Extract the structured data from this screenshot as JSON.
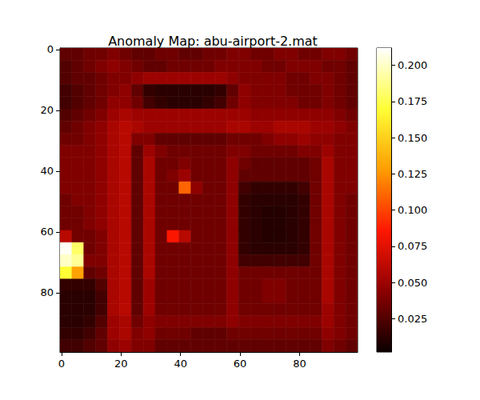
{
  "chart_data": {
    "type": "heatmap",
    "title": "Anomaly Map: abu-airport-2.mat",
    "color": "hot",
    "x": [
      1.5,
      5.5,
      9.5,
      13.5,
      17.5,
      21.5,
      25.5,
      29.5,
      33.5,
      37.5,
      41.5,
      45.5,
      49.5,
      53.5,
      57.5,
      61.5,
      65.5,
      69.5,
      73.5,
      77.5,
      81.5,
      85.5,
      89.5,
      93.5,
      97.5
    ],
    "y": [
      1.5,
      5.5,
      9.5,
      13.5,
      17.5,
      21.5,
      25.5,
      29.5,
      33.5,
      37.5,
      41.5,
      45.5,
      49.5,
      53.5,
      57.5,
      61.5,
      65.5,
      69.5,
      73.5,
      77.5,
      81.5,
      85.5,
      89.5,
      93.5,
      97.5
    ],
    "xlim": [
      -0.5,
      99.5
    ],
    "ylim": [
      99.5,
      -0.5
    ],
    "xticks": [
      0,
      20,
      40,
      60,
      80
    ],
    "yticks": [
      0,
      20,
      40,
      60,
      80
    ],
    "values": [
      [
        0.03,
        0.03,
        0.035,
        0.035,
        0.04,
        0.035,
        0.03,
        0.03,
        0.035,
        0.035,
        0.03,
        0.03,
        0.035,
        0.035,
        0.04,
        0.04,
        0.035,
        0.035,
        0.04,
        0.04,
        0.035,
        0.035,
        0.04,
        0.04,
        0.035
      ],
      [
        0.025,
        0.03,
        0.035,
        0.04,
        0.045,
        0.04,
        0.035,
        0.03,
        0.03,
        0.035,
        0.035,
        0.035,
        0.035,
        0.04,
        0.04,
        0.04,
        0.04,
        0.035,
        0.035,
        0.04,
        0.04,
        0.04,
        0.035,
        0.035,
        0.03
      ],
      [
        0.025,
        0.03,
        0.03,
        0.035,
        0.04,
        0.04,
        0.045,
        0.05,
        0.05,
        0.05,
        0.05,
        0.05,
        0.05,
        0.05,
        0.045,
        0.04,
        0.04,
        0.04,
        0.04,
        0.035,
        0.035,
        0.04,
        0.04,
        0.035,
        0.03
      ],
      [
        0.02,
        0.025,
        0.03,
        0.035,
        0.04,
        0.045,
        0.03,
        0.015,
        0.012,
        0.012,
        0.012,
        0.012,
        0.012,
        0.015,
        0.03,
        0.045,
        0.04,
        0.04,
        0.04,
        0.035,
        0.035,
        0.035,
        0.04,
        0.035,
        0.03
      ],
      [
        0.02,
        0.025,
        0.03,
        0.035,
        0.045,
        0.045,
        0.035,
        0.02,
        0.015,
        0.012,
        0.012,
        0.012,
        0.015,
        0.02,
        0.035,
        0.045,
        0.04,
        0.04,
        0.04,
        0.04,
        0.035,
        0.035,
        0.04,
        0.035,
        0.03
      ],
      [
        0.025,
        0.03,
        0.035,
        0.04,
        0.05,
        0.055,
        0.05,
        0.05,
        0.05,
        0.05,
        0.05,
        0.05,
        0.05,
        0.05,
        0.05,
        0.05,
        0.045,
        0.045,
        0.045,
        0.045,
        0.045,
        0.045,
        0.045,
        0.04,
        0.035
      ],
      [
        0.03,
        0.035,
        0.04,
        0.045,
        0.055,
        0.06,
        0.055,
        0.05,
        0.05,
        0.05,
        0.05,
        0.05,
        0.05,
        0.05,
        0.055,
        0.055,
        0.05,
        0.05,
        0.055,
        0.055,
        0.055,
        0.05,
        0.05,
        0.045,
        0.04
      ],
      [
        0.035,
        0.035,
        0.04,
        0.045,
        0.055,
        0.06,
        0.04,
        0.04,
        0.03,
        0.03,
        0.03,
        0.03,
        0.03,
        0.03,
        0.035,
        0.035,
        0.035,
        0.04,
        0.045,
        0.045,
        0.05,
        0.045,
        0.045,
        0.04,
        0.04
      ],
      [
        0.04,
        0.04,
        0.04,
        0.045,
        0.055,
        0.06,
        0.03,
        0.05,
        0.04,
        0.035,
        0.035,
        0.035,
        0.035,
        0.035,
        0.04,
        0.04,
        0.035,
        0.035,
        0.035,
        0.035,
        0.04,
        0.04,
        0.05,
        0.04,
        0.04
      ],
      [
        0.04,
        0.04,
        0.04,
        0.045,
        0.055,
        0.06,
        0.03,
        0.055,
        0.035,
        0.035,
        0.04,
        0.035,
        0.035,
        0.035,
        0.045,
        0.035,
        0.03,
        0.03,
        0.03,
        0.03,
        0.03,
        0.035,
        0.055,
        0.04,
        0.04
      ],
      [
        0.04,
        0.04,
        0.04,
        0.045,
        0.055,
        0.06,
        0.03,
        0.055,
        0.035,
        0.04,
        0.05,
        0.035,
        0.035,
        0.035,
        0.045,
        0.03,
        0.03,
        0.03,
        0.03,
        0.03,
        0.03,
        0.035,
        0.055,
        0.04,
        0.04
      ],
      [
        0.04,
        0.04,
        0.04,
        0.045,
        0.055,
        0.06,
        0.03,
        0.055,
        0.035,
        0.035,
        0.11,
        0.045,
        0.035,
        0.035,
        0.045,
        0.02,
        0.015,
        0.015,
        0.015,
        0.015,
        0.02,
        0.035,
        0.055,
        0.04,
        0.04
      ],
      [
        0.035,
        0.04,
        0.04,
        0.045,
        0.055,
        0.06,
        0.03,
        0.055,
        0.035,
        0.035,
        0.035,
        0.035,
        0.035,
        0.035,
        0.045,
        0.015,
        0.012,
        0.012,
        0.012,
        0.012,
        0.015,
        0.035,
        0.055,
        0.04,
        0.035
      ],
      [
        0.035,
        0.035,
        0.04,
        0.045,
        0.055,
        0.06,
        0.03,
        0.055,
        0.035,
        0.035,
        0.035,
        0.035,
        0.035,
        0.035,
        0.045,
        0.015,
        0.012,
        0.01,
        0.01,
        0.012,
        0.015,
        0.035,
        0.055,
        0.04,
        0.035
      ],
      [
        0.035,
        0.035,
        0.04,
        0.045,
        0.055,
        0.06,
        0.03,
        0.055,
        0.035,
        0.035,
        0.035,
        0.035,
        0.035,
        0.035,
        0.045,
        0.015,
        0.012,
        0.01,
        0.01,
        0.012,
        0.015,
        0.035,
        0.055,
        0.04,
        0.035
      ],
      [
        0.06,
        0.035,
        0.035,
        0.04,
        0.055,
        0.06,
        0.03,
        0.055,
        0.035,
        0.085,
        0.06,
        0.035,
        0.035,
        0.035,
        0.045,
        0.015,
        0.012,
        0.01,
        0.01,
        0.012,
        0.015,
        0.035,
        0.055,
        0.04,
        0.035
      ],
      [
        0.21,
        0.18,
        0.035,
        0.04,
        0.055,
        0.06,
        0.03,
        0.055,
        0.035,
        0.035,
        0.035,
        0.035,
        0.035,
        0.035,
        0.045,
        0.015,
        0.012,
        0.012,
        0.012,
        0.012,
        0.015,
        0.035,
        0.055,
        0.04,
        0.035
      ],
      [
        0.2,
        0.19,
        0.04,
        0.04,
        0.055,
        0.06,
        0.03,
        0.055,
        0.035,
        0.035,
        0.035,
        0.035,
        0.035,
        0.035,
        0.045,
        0.02,
        0.02,
        0.02,
        0.02,
        0.02,
        0.02,
        0.035,
        0.055,
        0.04,
        0.035
      ],
      [
        0.17,
        0.13,
        0.03,
        0.035,
        0.055,
        0.06,
        0.03,
        0.055,
        0.035,
        0.035,
        0.035,
        0.035,
        0.035,
        0.035,
        0.045,
        0.035,
        0.035,
        0.035,
        0.035,
        0.035,
        0.035,
        0.035,
        0.055,
        0.04,
        0.035
      ],
      [
        0.015,
        0.015,
        0.015,
        0.025,
        0.055,
        0.06,
        0.03,
        0.05,
        0.035,
        0.035,
        0.035,
        0.035,
        0.035,
        0.035,
        0.045,
        0.035,
        0.035,
        0.04,
        0.04,
        0.035,
        0.035,
        0.035,
        0.055,
        0.04,
        0.035
      ],
      [
        0.012,
        0.012,
        0.012,
        0.02,
        0.055,
        0.06,
        0.03,
        0.05,
        0.035,
        0.035,
        0.035,
        0.035,
        0.035,
        0.035,
        0.045,
        0.035,
        0.035,
        0.04,
        0.04,
        0.035,
        0.035,
        0.035,
        0.055,
        0.04,
        0.035
      ],
      [
        0.012,
        0.012,
        0.012,
        0.02,
        0.055,
        0.06,
        0.03,
        0.05,
        0.035,
        0.035,
        0.035,
        0.035,
        0.035,
        0.035,
        0.045,
        0.035,
        0.035,
        0.035,
        0.035,
        0.035,
        0.035,
        0.035,
        0.05,
        0.04,
        0.035
      ],
      [
        0.012,
        0.012,
        0.015,
        0.025,
        0.05,
        0.055,
        0.035,
        0.045,
        0.04,
        0.04,
        0.04,
        0.04,
        0.04,
        0.04,
        0.045,
        0.04,
        0.04,
        0.04,
        0.04,
        0.04,
        0.04,
        0.04,
        0.05,
        0.04,
        0.035
      ],
      [
        0.015,
        0.015,
        0.02,
        0.03,
        0.05,
        0.055,
        0.04,
        0.045,
        0.035,
        0.035,
        0.035,
        0.03,
        0.03,
        0.03,
        0.035,
        0.035,
        0.035,
        0.035,
        0.035,
        0.035,
        0.035,
        0.035,
        0.045,
        0.04,
        0.035
      ],
      [
        0.02,
        0.02,
        0.025,
        0.03,
        0.045,
        0.05,
        0.04,
        0.04,
        0.03,
        0.03,
        0.03,
        0.03,
        0.03,
        0.03,
        0.03,
        0.03,
        0.03,
        0.03,
        0.03,
        0.03,
        0.03,
        0.03,
        0.04,
        0.035,
        0.03
      ]
    ],
    "colorbar": {
      "range": [
        0.002,
        0.212
      ],
      "ticks": [
        0.025,
        {
          "value": 0.05,
          "label": "0.050"
        },
        0.075,
        {
          "value": 0.1,
          "label": "0.100"
        },
        0.125,
        {
          "value": 0.15,
          "label": "0.150"
        },
        0.175,
        {
          "value": 0.2,
          "label": "0.200"
        }
      ]
    }
  }
}
